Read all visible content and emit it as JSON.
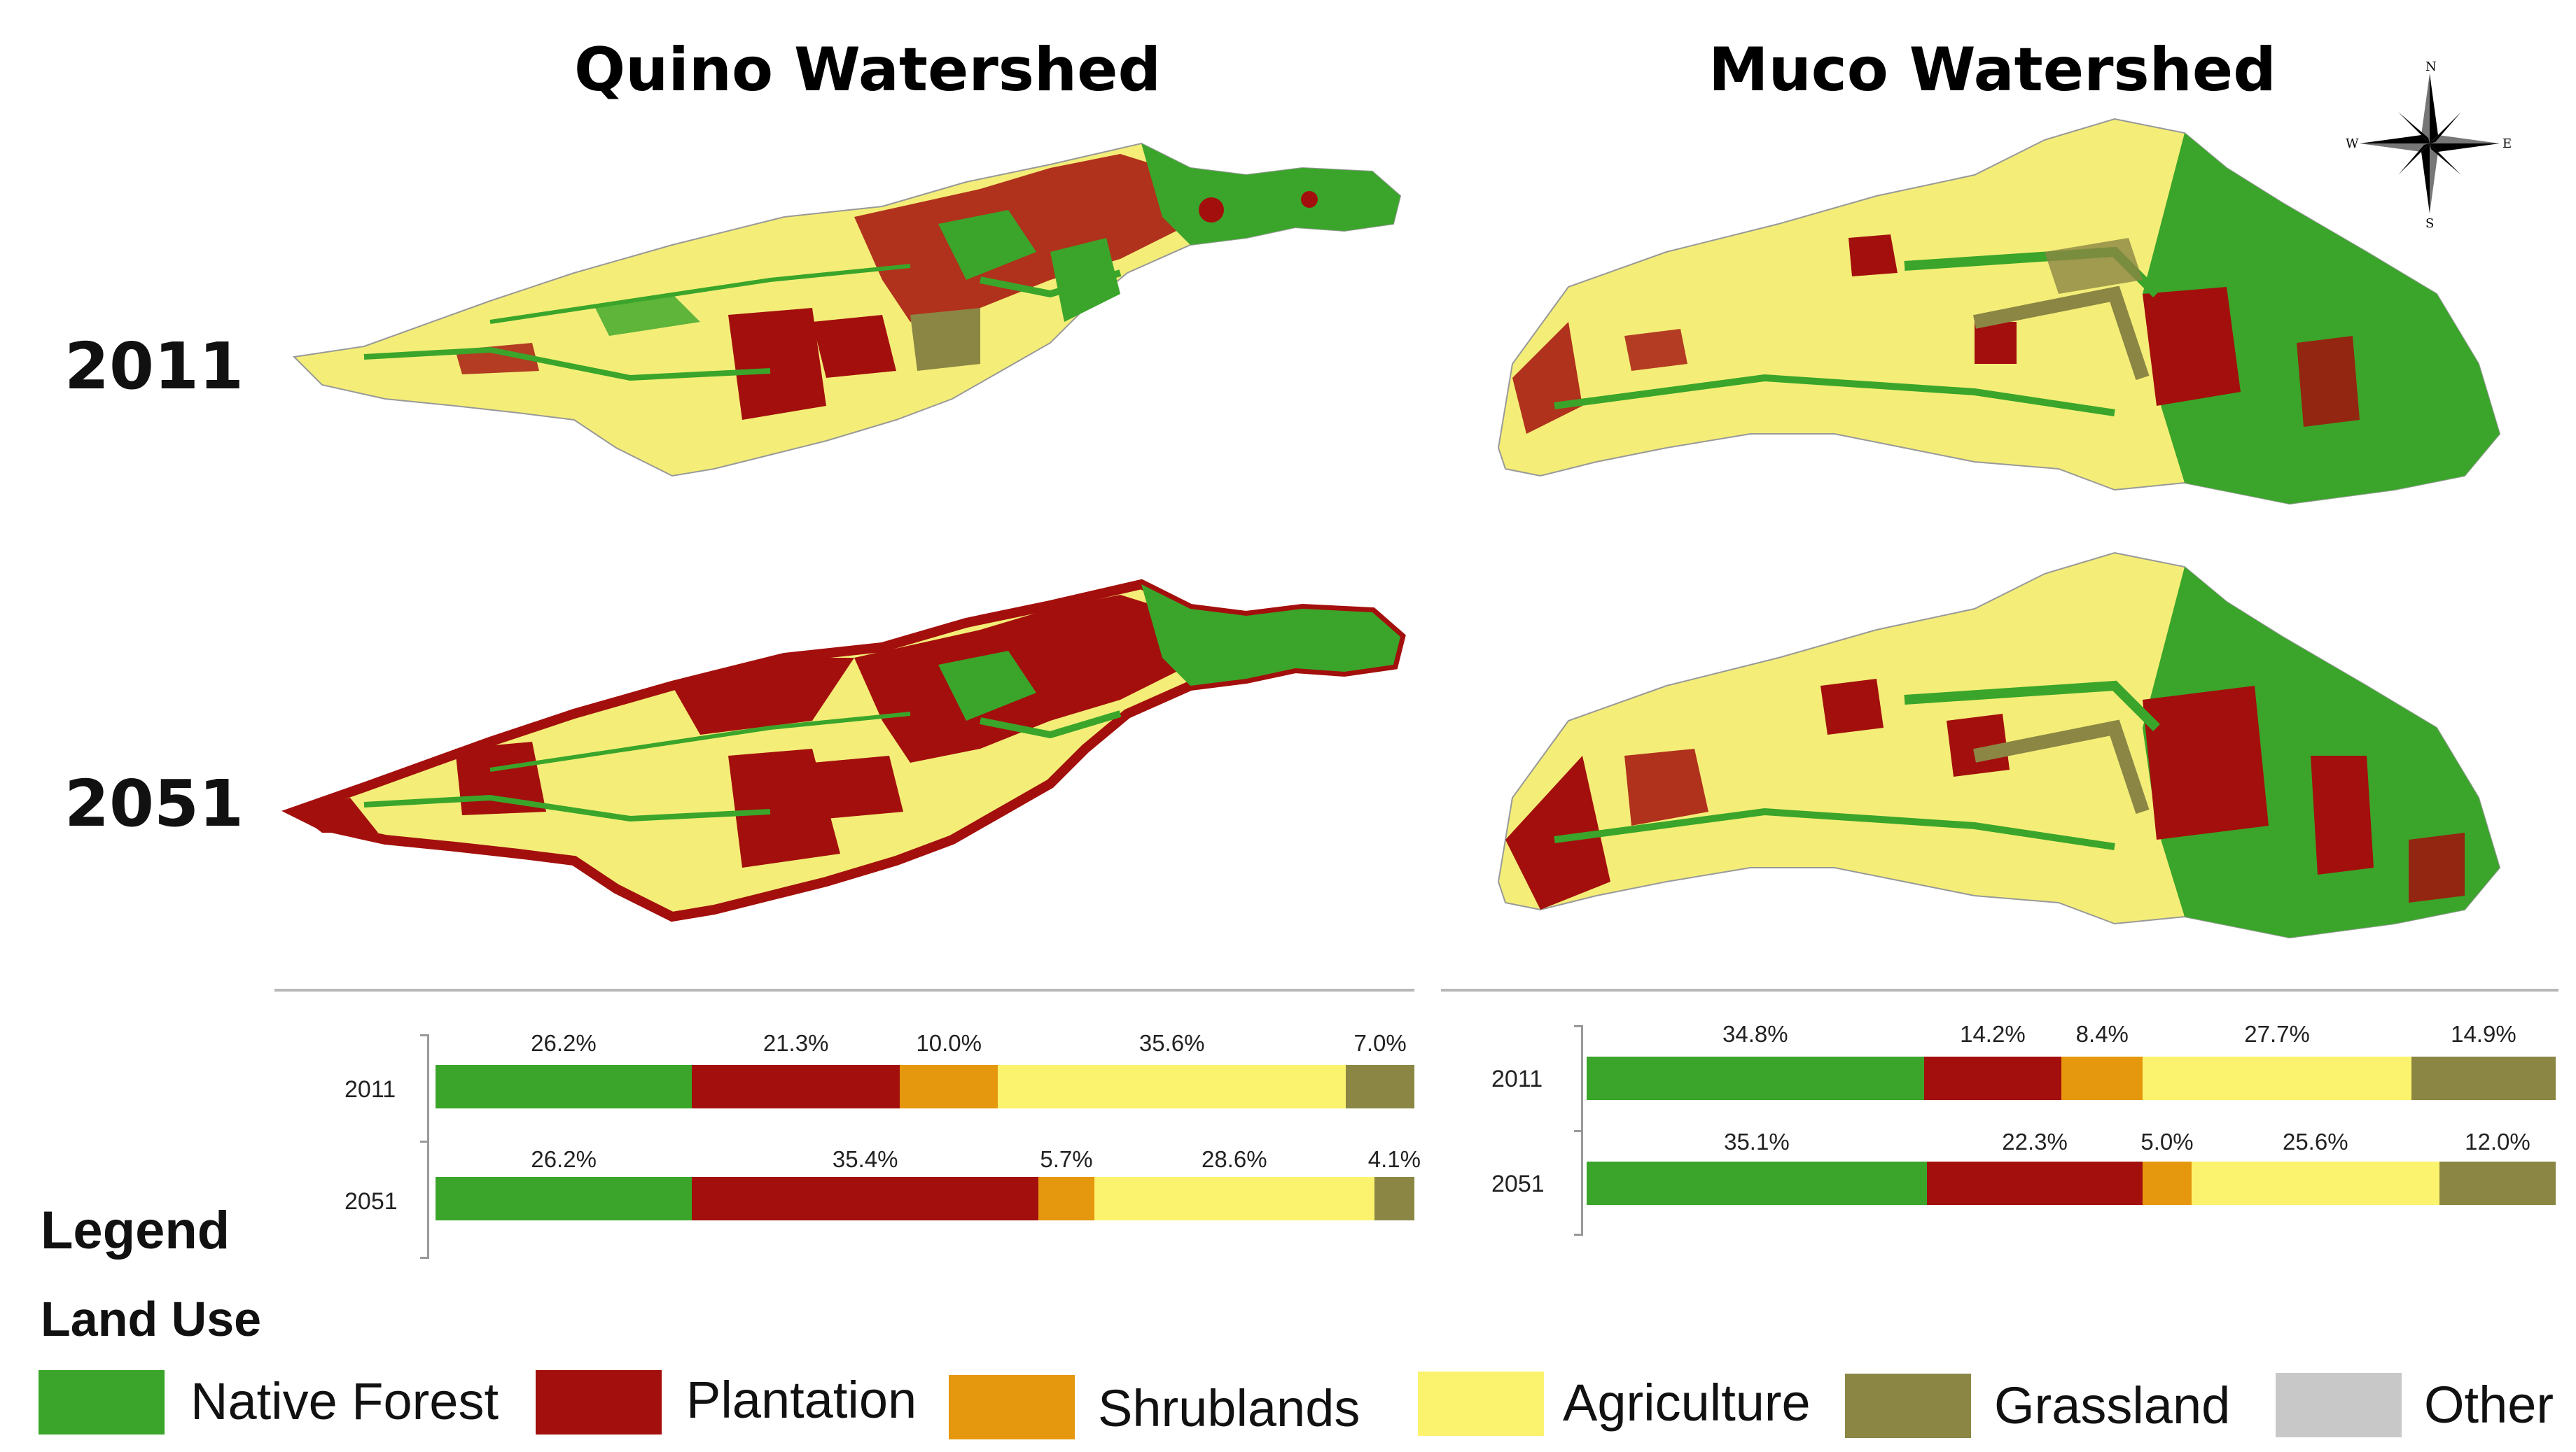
{
  "titles": {
    "quino": "Quino Watershed",
    "muco": "Muco Watershed"
  },
  "years": [
    "2011",
    "2051"
  ],
  "compass": {
    "n": "N",
    "s": "S",
    "e": "E",
    "w": "W"
  },
  "legend": {
    "title": "Legend",
    "subtitle": "Land Use"
  },
  "categories": [
    {
      "name": "Native Forest",
      "color": "#3aa52a"
    },
    {
      "name": "Plantation",
      "color": "#a30f0c"
    },
    {
      "name": "Shrublands",
      "color": "#e5980e"
    },
    {
      "name": "Agriculture",
      "color": "#fbf36e"
    },
    {
      "name": "Grassland",
      "color": "#8b8644"
    },
    {
      "name": "Other",
      "color": "#c8c8c8"
    }
  ],
  "chart_data": [
    {
      "type": "bar",
      "watershed": "Quino Watershed",
      "categories": [
        "2011",
        "2051"
      ],
      "series": [
        {
          "name": "Native Forest",
          "values": [
            26.2,
            26.2
          ]
        },
        {
          "name": "Plantation",
          "values": [
            21.3,
            35.4
          ]
        },
        {
          "name": "Shrublands",
          "values": [
            10.0,
            5.7
          ]
        },
        {
          "name": "Agriculture",
          "values": [
            35.6,
            28.6
          ]
        },
        {
          "name": "Grassland",
          "values": [
            7.0,
            4.1
          ]
        },
        {
          "name": "Other",
          "values": [
            0,
            0
          ]
        }
      ],
      "labels": [
        [
          "26.2%",
          "21.3%",
          "10.0%",
          "35.6%",
          "7.0%"
        ],
        [
          "26.2%",
          "35.4%",
          "5.7%",
          "28.6%",
          "4.1%"
        ]
      ]
    },
    {
      "type": "bar",
      "watershed": "Muco Watershed",
      "categories": [
        "2011",
        "2051"
      ],
      "series": [
        {
          "name": "Native Forest",
          "values": [
            34.8,
            35.1
          ]
        },
        {
          "name": "Plantation",
          "values": [
            14.2,
            22.3
          ]
        },
        {
          "name": "Shrublands",
          "values": [
            8.4,
            5.0
          ]
        },
        {
          "name": "Agriculture",
          "values": [
            27.7,
            25.6
          ]
        },
        {
          "name": "Grassland",
          "values": [
            14.9,
            12.0
          ]
        },
        {
          "name": "Other",
          "values": [
            0,
            0
          ]
        }
      ],
      "labels": [
        [
          "34.8%",
          "14.2%",
          "8.4%",
          "27.7%",
          "14.9%"
        ],
        [
          "35.1%",
          "22.3%",
          "5.0%",
          "25.6%",
          "12.0%"
        ]
      ]
    }
  ]
}
